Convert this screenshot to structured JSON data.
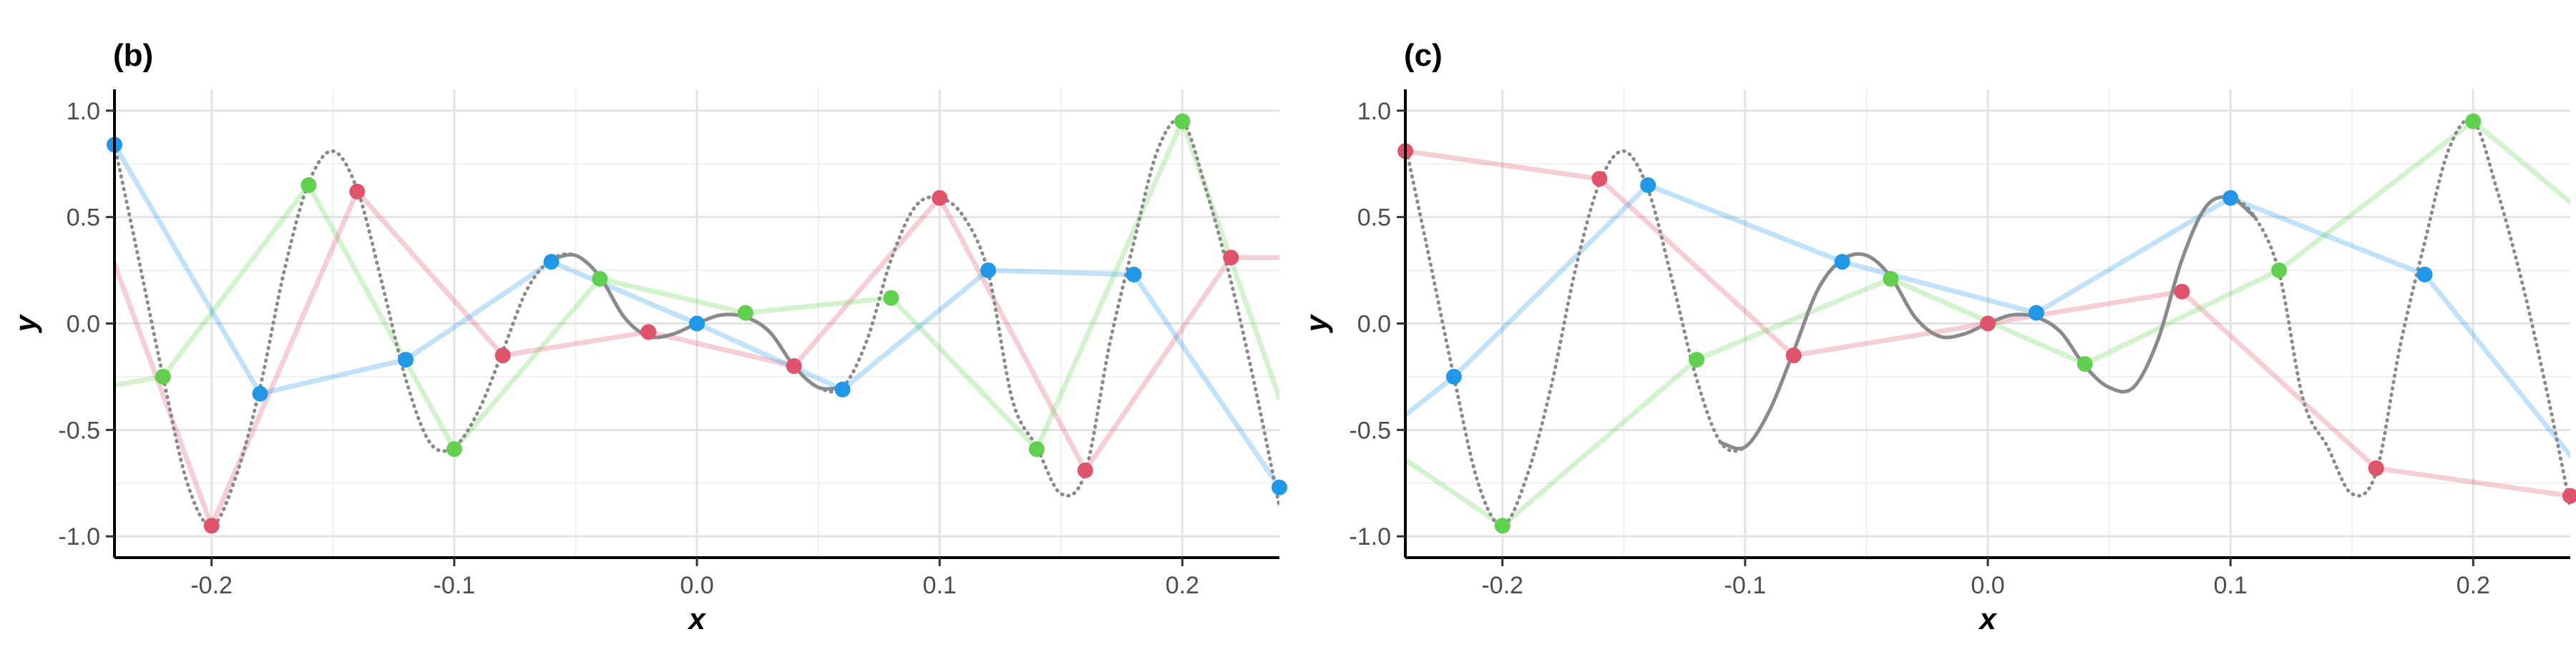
{
  "chart_data": [
    {
      "type": "line",
      "tag": "(b)",
      "xlabel": "x",
      "ylabel": "y",
      "xlim": [
        -0.24,
        0.24
      ],
      "ylim": [
        -1.1,
        1.1
      ],
      "xticks": [
        -0.2,
        -0.1,
        0.0,
        0.1,
        0.2
      ],
      "xtick_labels": [
        "-0.2",
        "-0.1",
        "0.0",
        "0.1",
        "0.2"
      ],
      "yticks": [
        -1.0,
        -0.5,
        0.0,
        0.5,
        1.0
      ],
      "ytick_labels": [
        "-1.0",
        "-0.5",
        "0.0",
        "0.5",
        "1.0"
      ],
      "grid": true,
      "curve": {
        "x": [
          -0.24,
          -0.23,
          -0.22,
          -0.21,
          -0.2,
          -0.19,
          -0.18,
          -0.17,
          -0.16,
          -0.15,
          -0.14,
          -0.13,
          -0.12,
          -0.11,
          -0.1,
          -0.09,
          -0.08,
          -0.07,
          -0.06,
          -0.05,
          -0.04,
          -0.03,
          -0.02,
          -0.01,
          0.0,
          0.01,
          0.02,
          0.03,
          0.04,
          0.05,
          0.06,
          0.07,
          0.08,
          0.09,
          0.1,
          0.11,
          0.12,
          0.13,
          0.14,
          0.15,
          0.16,
          0.17,
          0.18,
          0.19,
          0.2,
          0.21,
          0.22,
          0.23,
          0.24
        ],
        "y": [
          0.84,
          0.3,
          -0.25,
          -0.75,
          -0.95,
          -0.72,
          -0.3,
          0.25,
          0.66,
          0.81,
          0.63,
          0.2,
          -0.26,
          -0.56,
          -0.58,
          -0.41,
          -0.13,
          0.16,
          0.3,
          0.32,
          0.22,
          0.03,
          -0.06,
          -0.05,
          0.0,
          0.04,
          0.03,
          -0.04,
          -0.2,
          -0.3,
          -0.3,
          -0.08,
          0.3,
          0.55,
          0.59,
          0.5,
          0.24,
          -0.36,
          -0.58,
          -0.8,
          -0.7,
          -0.1,
          0.38,
          0.82,
          0.95,
          0.62,
          0.2,
          -0.3,
          -0.86
        ],
        "solid_range": [
          -0.06,
          0.06
        ]
      },
      "series": [
        {
          "color": "#df536b",
          "x": [
            -0.24,
            -0.2,
            -0.14,
            -0.08,
            -0.02,
            0.04,
            0.1,
            0.16,
            0.22,
            0.24
          ],
          "y": [
            0.28,
            -0.95,
            0.62,
            -0.15,
            -0.04,
            -0.2,
            0.59,
            -0.69,
            0.31,
            0.31
          ],
          "points": [
            false,
            true,
            true,
            true,
            true,
            true,
            true,
            true,
            true,
            false
          ]
        },
        {
          "color": "#61d04f",
          "x": [
            -0.24,
            -0.22,
            -0.16,
            -0.1,
            -0.04,
            0.02,
            0.08,
            0.14,
            0.2,
            0.24
          ],
          "y": [
            -0.29,
            -0.25,
            0.65,
            -0.59,
            0.21,
            0.05,
            0.12,
            -0.59,
            0.95,
            -0.35
          ],
          "points": [
            false,
            true,
            true,
            true,
            true,
            true,
            true,
            true,
            true,
            false
          ]
        },
        {
          "color": "#2297e6",
          "x": [
            -0.24,
            -0.18,
            -0.12,
            -0.06,
            0.0,
            0.06,
            0.12,
            0.18,
            0.24
          ],
          "y": [
            0.84,
            -0.33,
            -0.17,
            0.29,
            0.0,
            -0.31,
            0.25,
            0.23,
            -0.77
          ],
          "points": [
            true,
            true,
            true,
            true,
            true,
            true,
            true,
            true,
            true
          ]
        }
      ]
    },
    {
      "type": "line",
      "tag": "(c)",
      "xlabel": "x",
      "ylabel": "y",
      "xlim": [
        -0.24,
        0.24
      ],
      "ylim": [
        -1.1,
        1.1
      ],
      "xticks": [
        -0.2,
        -0.1,
        0.0,
        0.1,
        0.2
      ],
      "xtick_labels": [
        "-0.2",
        "-0.1",
        "0.0",
        "0.1",
        "0.2"
      ],
      "yticks": [
        -1.0,
        -0.5,
        0.0,
        0.5,
        1.0
      ],
      "ytick_labels": [
        "-1.0",
        "-0.5",
        "0.0",
        "0.5",
        "1.0"
      ],
      "grid": true,
      "curve": {
        "x": [
          -0.24,
          -0.23,
          -0.22,
          -0.21,
          -0.2,
          -0.19,
          -0.18,
          -0.17,
          -0.16,
          -0.15,
          -0.14,
          -0.13,
          -0.12,
          -0.11,
          -0.1,
          -0.09,
          -0.08,
          -0.07,
          -0.06,
          -0.05,
          -0.04,
          -0.03,
          -0.02,
          -0.01,
          0.0,
          0.01,
          0.02,
          0.03,
          0.04,
          0.05,
          0.06,
          0.07,
          0.08,
          0.09,
          0.1,
          0.11,
          0.12,
          0.13,
          0.14,
          0.15,
          0.16,
          0.17,
          0.18,
          0.19,
          0.2,
          0.21,
          0.22,
          0.23,
          0.24
        ],
        "y": [
          0.84,
          0.3,
          -0.25,
          -0.75,
          -0.95,
          -0.72,
          -0.3,
          0.25,
          0.66,
          0.81,
          0.63,
          0.2,
          -0.26,
          -0.56,
          -0.58,
          -0.41,
          -0.13,
          0.16,
          0.3,
          0.32,
          0.22,
          0.03,
          -0.06,
          -0.05,
          0.0,
          0.04,
          0.03,
          -0.04,
          -0.2,
          -0.3,
          -0.3,
          -0.08,
          0.3,
          0.55,
          0.59,
          0.5,
          0.24,
          -0.36,
          -0.58,
          -0.8,
          -0.7,
          -0.1,
          0.38,
          0.82,
          0.95,
          0.62,
          0.2,
          -0.3,
          -0.86
        ],
        "solid_range": [
          -0.11,
          0.11
        ]
      },
      "series": [
        {
          "color": "#df536b",
          "x": [
            -0.24,
            -0.16,
            -0.08,
            0.0,
            0.08,
            0.16,
            0.24
          ],
          "y": [
            0.81,
            0.68,
            -0.15,
            0.0,
            0.15,
            -0.68,
            -0.81
          ],
          "points": [
            true,
            true,
            true,
            true,
            true,
            true,
            true
          ]
        },
        {
          "color": "#2297e6",
          "x": [
            -0.24,
            -0.22,
            -0.14,
            -0.06,
            0.02,
            0.1,
            0.18,
            0.24
          ],
          "y": [
            -0.43,
            -0.25,
            0.65,
            0.29,
            0.05,
            0.59,
            0.23,
            -0.62
          ],
          "points": [
            false,
            true,
            true,
            true,
            true,
            true,
            true,
            false
          ]
        },
        {
          "color": "#61d04f",
          "x": [
            -0.24,
            -0.2,
            -0.12,
            -0.04,
            0.04,
            0.12,
            0.2,
            0.24
          ],
          "y": [
            -0.64,
            -0.95,
            -0.17,
            0.21,
            -0.19,
            0.25,
            0.95,
            0.57
          ],
          "points": [
            false,
            true,
            true,
            true,
            true,
            true,
            true,
            false
          ]
        }
      ]
    }
  ]
}
